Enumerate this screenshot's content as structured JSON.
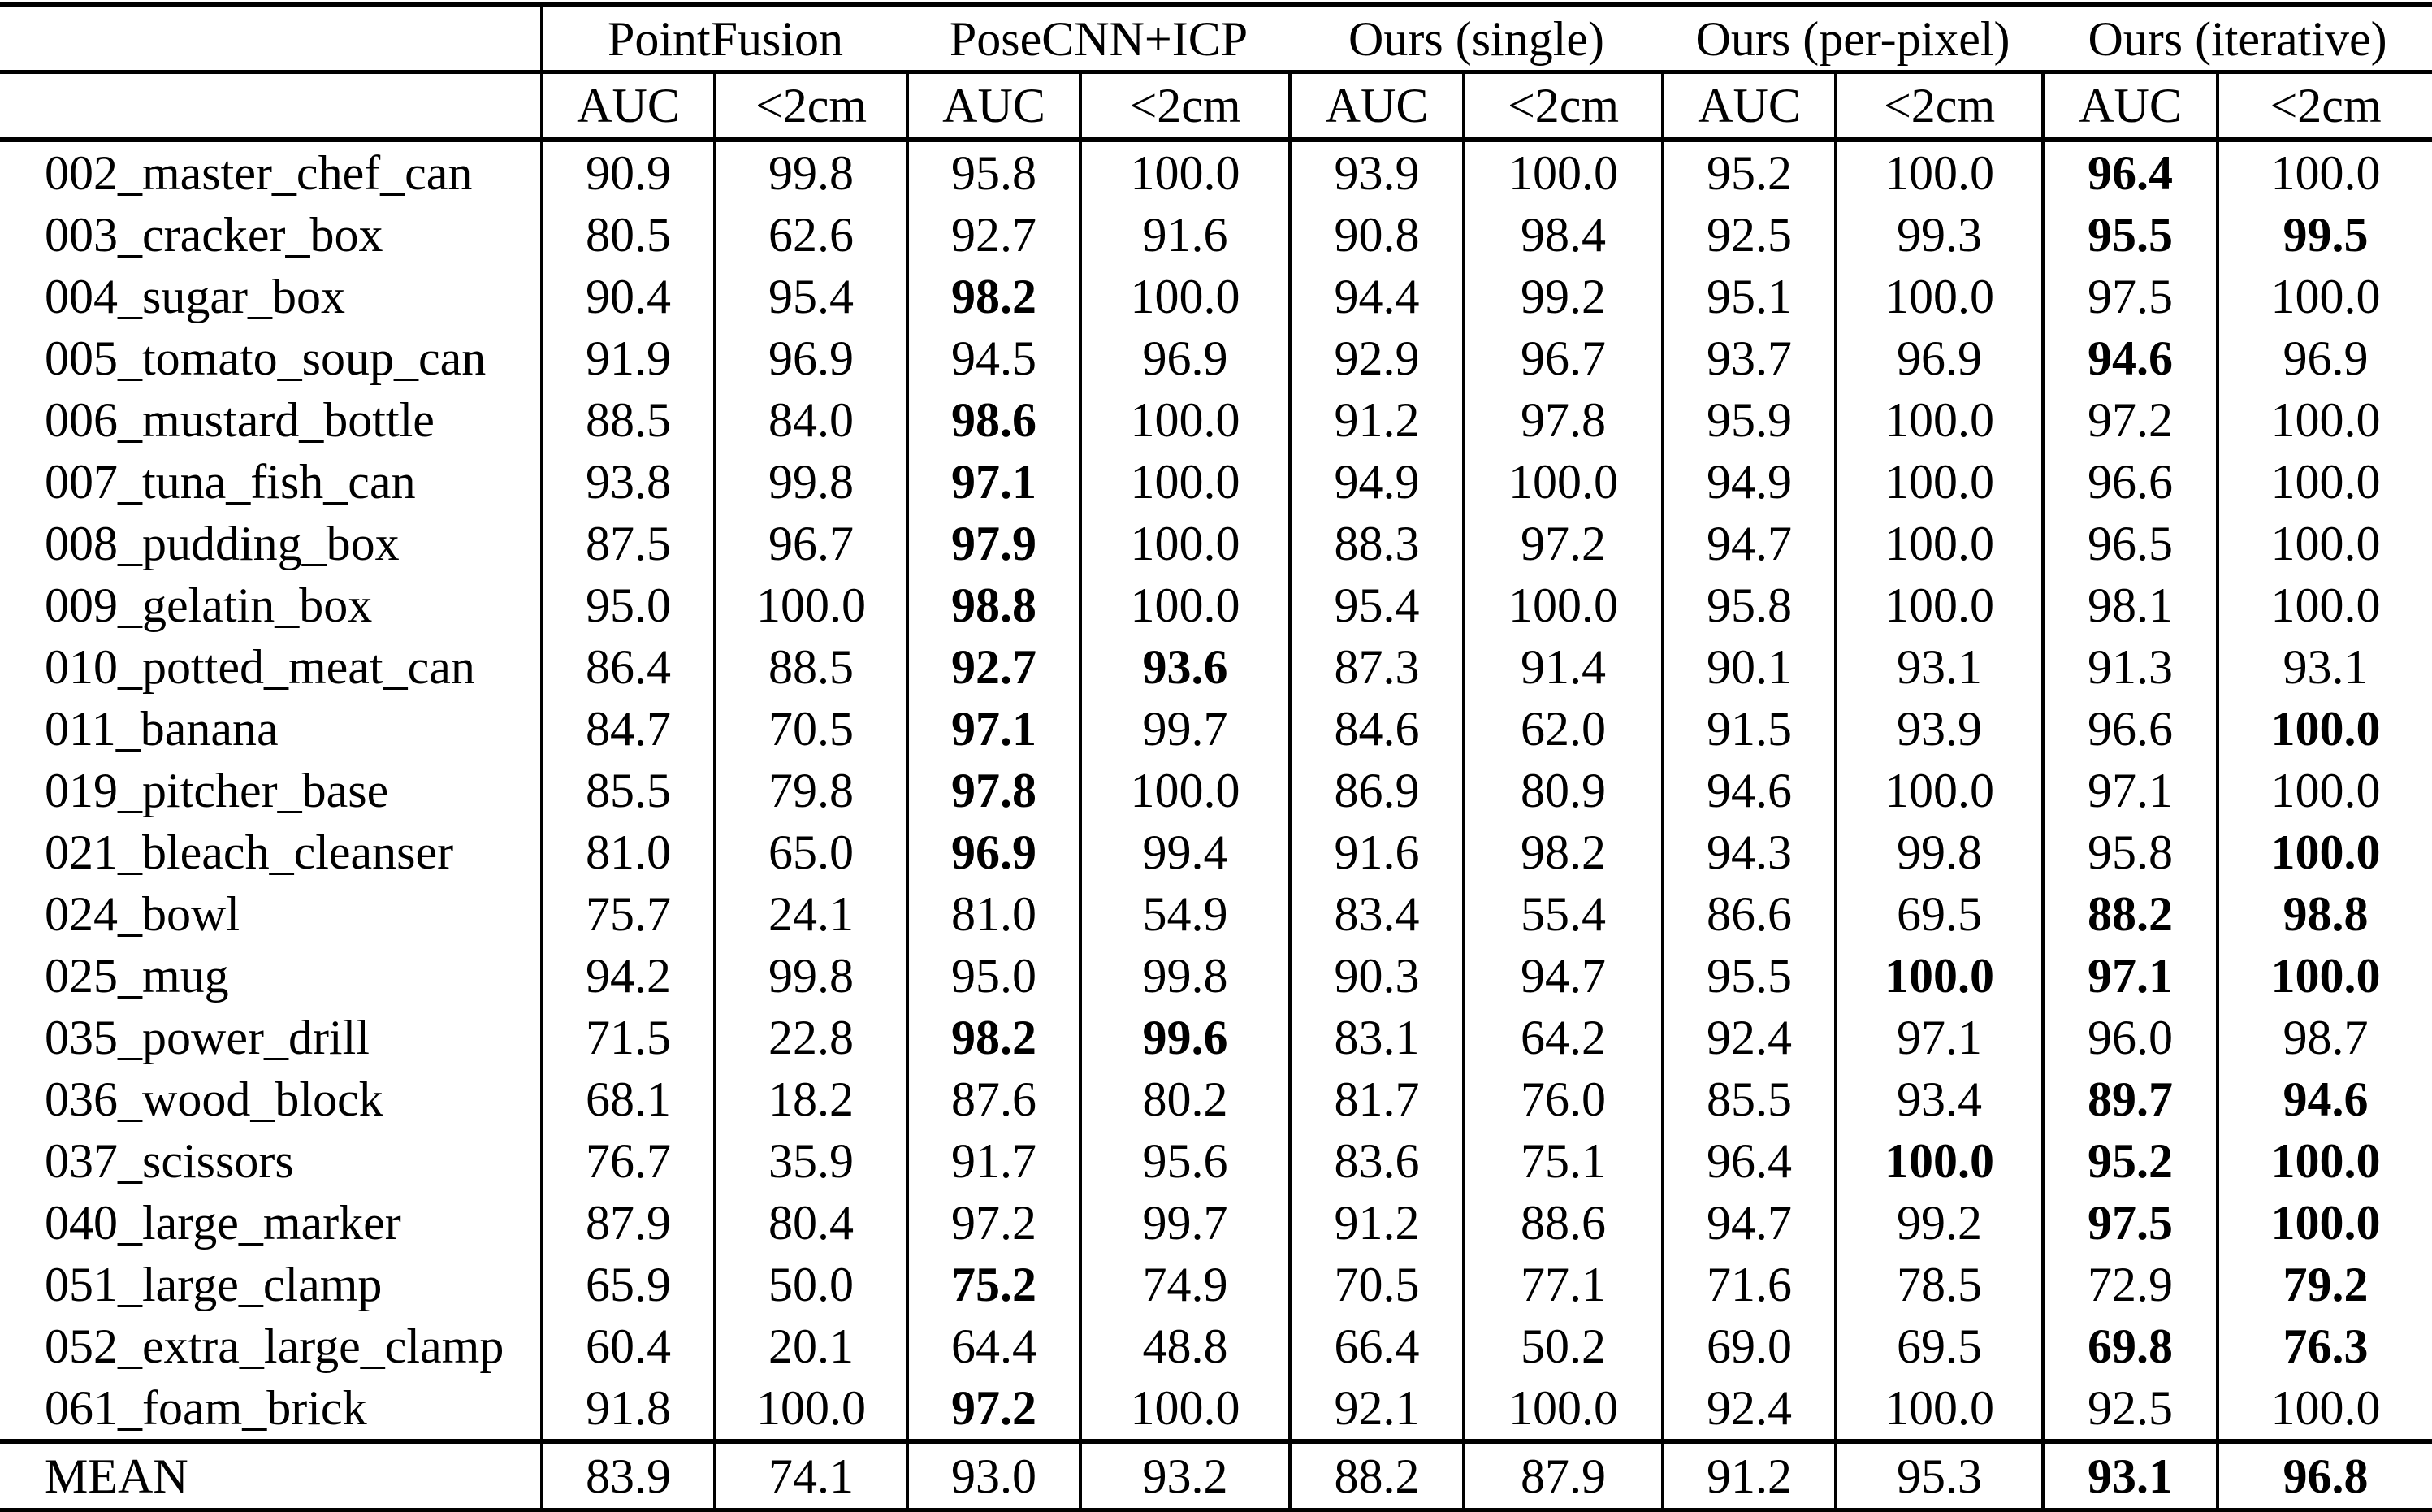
{
  "table": {
    "groups": [
      {
        "label": "PointFusion"
      },
      {
        "label": "PoseCNN+ICP"
      },
      {
        "label": "Ours (single)"
      },
      {
        "label": "Ours (per-pixel)"
      },
      {
        "label": "Ours (iterative)"
      }
    ],
    "subheaders": [
      "AUC",
      "<2cm"
    ],
    "rows": [
      {
        "label": "002_master_chef_can",
        "values": [
          "90.9",
          "99.8",
          "95.8",
          "100.0",
          "93.9",
          "100.0",
          "95.2",
          "100.0",
          "96.4",
          "100.0"
        ],
        "bold": [
          8
        ]
      },
      {
        "label": "003_cracker_box",
        "values": [
          "80.5",
          "62.6",
          "92.7",
          "91.6",
          "90.8",
          "98.4",
          "92.5",
          "99.3",
          "95.5",
          "99.5"
        ],
        "bold": [
          8,
          9
        ]
      },
      {
        "label": "004_sugar_box",
        "values": [
          "90.4",
          "95.4",
          "98.2",
          "100.0",
          "94.4",
          "99.2",
          "95.1",
          "100.0",
          "97.5",
          "100.0"
        ],
        "bold": [
          2
        ]
      },
      {
        "label": "005_tomato_soup_can",
        "values": [
          "91.9",
          "96.9",
          "94.5",
          "96.9",
          "92.9",
          "96.7",
          "93.7",
          "96.9",
          "94.6",
          "96.9"
        ],
        "bold": [
          8
        ]
      },
      {
        "label": "006_mustard_bottle",
        "values": [
          "88.5",
          "84.0",
          "98.6",
          "100.0",
          "91.2",
          "97.8",
          "95.9",
          "100.0",
          "97.2",
          "100.0"
        ],
        "bold": [
          2
        ]
      },
      {
        "label": "007_tuna_fish_can",
        "values": [
          "93.8",
          "99.8",
          "97.1",
          "100.0",
          "94.9",
          "100.0",
          "94.9",
          "100.0",
          "96.6",
          "100.0"
        ],
        "bold": [
          2
        ]
      },
      {
        "label": "008_pudding_box",
        "values": [
          "87.5",
          "96.7",
          "97.9",
          "100.0",
          "88.3",
          "97.2",
          "94.7",
          "100.0",
          "96.5",
          "100.0"
        ],
        "bold": [
          2
        ]
      },
      {
        "label": "009_gelatin_box",
        "values": [
          "95.0",
          "100.0",
          "98.8",
          "100.0",
          "95.4",
          "100.0",
          "95.8",
          "100.0",
          "98.1",
          "100.0"
        ],
        "bold": [
          2
        ]
      },
      {
        "label": "010_potted_meat_can",
        "values": [
          "86.4",
          "88.5",
          "92.7",
          "93.6",
          "87.3",
          "91.4",
          "90.1",
          "93.1",
          "91.3",
          "93.1"
        ],
        "bold": [
          2,
          3
        ]
      },
      {
        "label": "011_banana",
        "values": [
          "84.7",
          "70.5",
          "97.1",
          "99.7",
          "84.6",
          "62.0",
          "91.5",
          "93.9",
          "96.6",
          "100.0"
        ],
        "bold": [
          2,
          9
        ]
      },
      {
        "label": "019_pitcher_base",
        "values": [
          "85.5",
          "79.8",
          "97.8",
          "100.0",
          "86.9",
          "80.9",
          "94.6",
          "100.0",
          "97.1",
          "100.0"
        ],
        "bold": [
          2
        ]
      },
      {
        "label": "021_bleach_cleanser",
        "values": [
          "81.0",
          "65.0",
          "96.9",
          "99.4",
          "91.6",
          "98.2",
          "94.3",
          "99.8",
          "95.8",
          "100.0"
        ],
        "bold": [
          2,
          9
        ]
      },
      {
        "label": "024_bowl",
        "values": [
          "75.7",
          "24.1",
          "81.0",
          "54.9",
          "83.4",
          "55.4",
          "86.6",
          "69.5",
          "88.2",
          "98.8"
        ],
        "bold": [
          8,
          9
        ]
      },
      {
        "label": "025_mug",
        "values": [
          "94.2",
          "99.8",
          "95.0",
          "99.8",
          "90.3",
          "94.7",
          "95.5",
          "100.0",
          "97.1",
          "100.0"
        ],
        "bold": [
          7,
          8,
          9
        ]
      },
      {
        "label": "035_power_drill",
        "values": [
          "71.5",
          "22.8",
          "98.2",
          "99.6",
          "83.1",
          "64.2",
          "92.4",
          "97.1",
          "96.0",
          "98.7"
        ],
        "bold": [
          2,
          3
        ]
      },
      {
        "label": "036_wood_block",
        "values": [
          "68.1",
          "18.2",
          "87.6",
          "80.2",
          "81.7",
          "76.0",
          "85.5",
          "93.4",
          "89.7",
          "94.6"
        ],
        "bold": [
          8,
          9
        ]
      },
      {
        "label": "037_scissors",
        "values": [
          "76.7",
          "35.9",
          "91.7",
          "95.6",
          "83.6",
          "75.1",
          "96.4",
          "100.0",
          "95.2",
          "100.0"
        ],
        "bold": [
          7,
          8,
          9
        ]
      },
      {
        "label": "040_large_marker",
        "values": [
          "87.9",
          "80.4",
          "97.2",
          "99.7",
          "91.2",
          "88.6",
          "94.7",
          "99.2",
          "97.5",
          "100.0"
        ],
        "bold": [
          8,
          9
        ]
      },
      {
        "label": "051_large_clamp",
        "values": [
          "65.9",
          "50.0",
          "75.2",
          "74.9",
          "70.5",
          "77.1",
          "71.6",
          "78.5",
          "72.9",
          "79.2"
        ],
        "bold": [
          2,
          9
        ]
      },
      {
        "label": "052_extra_large_clamp",
        "values": [
          "60.4",
          "20.1",
          "64.4",
          "48.8",
          "66.4",
          "50.2",
          "69.0",
          "69.5",
          "69.8",
          "76.3"
        ],
        "bold": [
          8,
          9
        ]
      },
      {
        "label": "061_foam_brick",
        "values": [
          "91.8",
          "100.0",
          "97.2",
          "100.0",
          "92.1",
          "100.0",
          "92.4",
          "100.0",
          "92.5",
          "100.0"
        ],
        "bold": [
          2
        ]
      },
      {
        "label": "MEAN",
        "values": [
          "83.9",
          "74.1",
          "93.0",
          "93.2",
          "88.2",
          "87.9",
          "91.2",
          "95.3",
          "93.1",
          "96.8"
        ],
        "bold": [
          8,
          9
        ],
        "mean": true
      }
    ]
  }
}
